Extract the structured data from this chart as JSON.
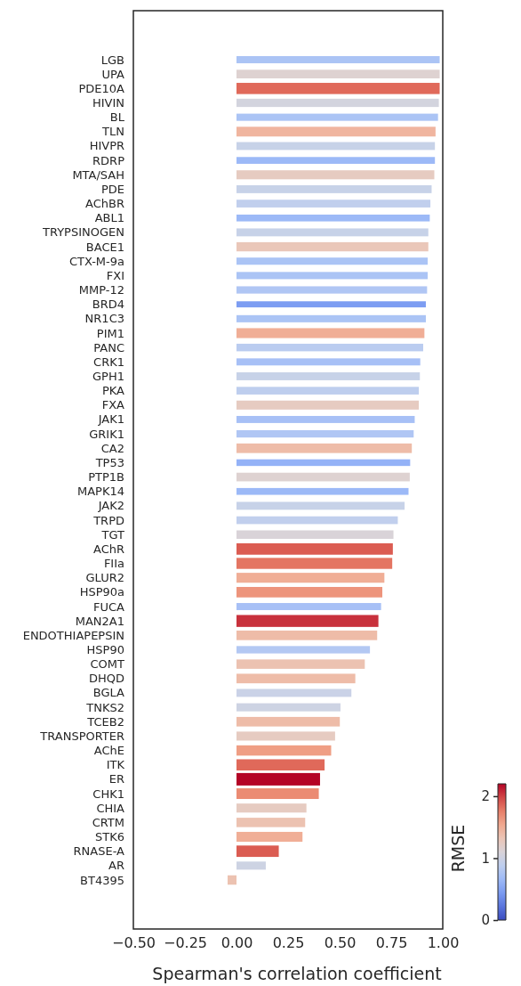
{
  "chart_data": {
    "type": "bar",
    "orientation": "horizontal",
    "xlabel": "Spearman's correlation coefficient",
    "clabel": "RMSE",
    "clim": [
      0,
      2.2
    ],
    "cticks": [
      0,
      1,
      2
    ],
    "xlim": [
      -0.5,
      1.0
    ],
    "xticks": [
      {
        "value": -0.5,
        "label": "−0.50"
      },
      {
        "value": -0.25,
        "label": "−0.25"
      },
      {
        "value": 0,
        "label": "0.00"
      },
      {
        "value": 0.25,
        "label": "0.25"
      },
      {
        "value": 0.5,
        "label": "0.50"
      },
      {
        "value": 0.75,
        "label": "0.75"
      },
      {
        "value": 1.0,
        "label": "1.00"
      }
    ],
    "grid": false,
    "categories": [
      "LGB",
      "UPA",
      "PDE10A",
      "HIVIN",
      "BL",
      "TLN",
      "HIVPR",
      "RDRP",
      "MTA/SAH",
      "PDE",
      "AChBR",
      "ABL1",
      "TRYPSINOGEN",
      "BACE1",
      "CTX-M-9a",
      "FXI",
      "MMP-12",
      "BRD4",
      "NR1C3",
      "PIM1",
      "PANC",
      "CRK1",
      "GPH1",
      "PKA",
      "FXA",
      "JAK1",
      "GRIK1",
      "CA2",
      "TP53",
      "PTP1B",
      "MAPK14",
      "JAK2",
      "TRPD",
      "TGT",
      "AChR",
      "FIIa",
      "GLUR2",
      "HSP90a",
      "FUCA",
      "MAN2A1",
      "ENDOTHIAPEPSIN",
      "HSP90",
      "COMT",
      "DHQD",
      "BGLA",
      "TNKS2",
      "TCEB2",
      "TRANSPORTER",
      "AChE",
      "ITK",
      "ER",
      "CHK1",
      "CHIA",
      "CRTM",
      "STK6",
      "RNASE-A",
      "AR",
      "BT4395"
    ],
    "values": [
      0.985,
      0.985,
      0.985,
      0.981,
      0.977,
      0.965,
      0.962,
      0.962,
      0.959,
      0.946,
      0.94,
      0.937,
      0.93,
      0.93,
      0.927,
      0.927,
      0.924,
      0.918,
      0.918,
      0.911,
      0.905,
      0.891,
      0.889,
      0.884,
      0.884,
      0.864,
      0.859,
      0.85,
      0.842,
      0.84,
      0.834,
      0.815,
      0.782,
      0.761,
      0.758,
      0.755,
      0.717,
      0.707,
      0.701,
      0.688,
      0.682,
      0.647,
      0.622,
      0.576,
      0.557,
      0.504,
      0.501,
      0.478,
      0.459,
      0.427,
      0.405,
      0.399,
      0.339,
      0.333,
      0.32,
      0.205,
      0.142,
      -0.043
    ],
    "cvalues": [
      0.75,
      1.15,
      1.85,
      1.05,
      0.75,
      1.45,
      0.95,
      0.65,
      1.25,
      0.95,
      0.9,
      0.65,
      0.95,
      1.3,
      0.75,
      0.75,
      0.78,
      0.45,
      0.75,
      1.5,
      0.85,
      0.72,
      0.95,
      0.88,
      1.25,
      0.72,
      0.78,
      1.4,
      0.6,
      1.15,
      0.65,
      0.95,
      0.9,
      1.1,
      1.9,
      1.8,
      1.5,
      1.65,
      0.72,
      2.05,
      1.4,
      0.8,
      1.35,
      1.4,
      0.97,
      1.0,
      1.4,
      1.25,
      1.6,
      1.85,
      2.2,
      1.7,
      1.25,
      1.35,
      1.5,
      1.9,
      1.0,
      1.35
    ]
  }
}
